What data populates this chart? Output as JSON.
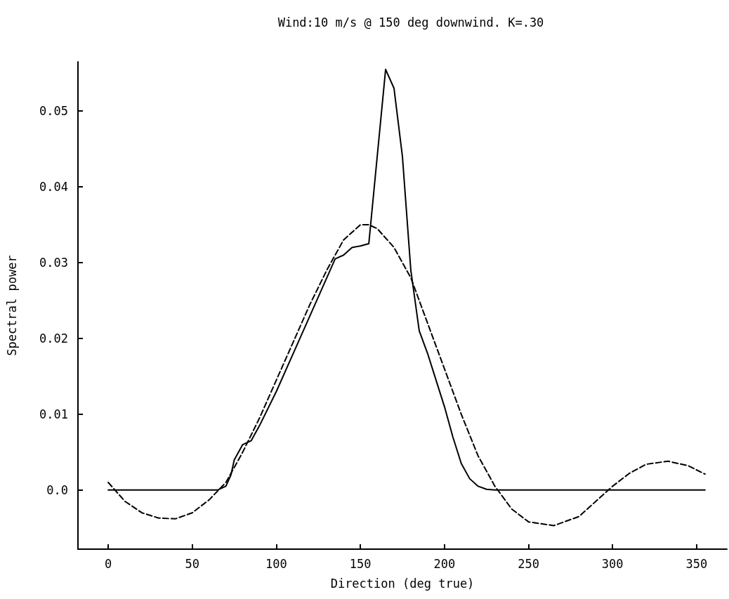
{
  "chart_data": {
    "type": "line",
    "title": "Wind:10 m/s @ 150 deg downwind. K=.30",
    "xlabel": "Direction (deg true)",
    "ylabel": "Spectral power",
    "xlim": [
      -18,
      368
    ],
    "xticks": [
      0,
      50,
      100,
      150,
      200,
      250,
      300,
      350
    ],
    "ylim": [
      -0.0078,
      0.0565
    ],
    "yticks": [
      {
        "value": 0,
        "label": "0.0"
      },
      0.01,
      0.02,
      0.03,
      0.04,
      0.05
    ],
    "grid": false,
    "marker": "none",
    "series": [
      {
        "color": "#000000",
        "line_style": "solid",
        "x": [
          0,
          65,
          70,
          73,
          75,
          80,
          85,
          90,
          100,
          110,
          120,
          130,
          135,
          140,
          145,
          150,
          155,
          160,
          165,
          170,
          175,
          180,
          185,
          190,
          200,
          205,
          210,
          215,
          220,
          225,
          230,
          355
        ],
        "values": [
          0,
          0,
          0.0005,
          0.002,
          0.004,
          0.006,
          0.0065,
          0.0085,
          0.013,
          0.018,
          0.023,
          0.028,
          0.0305,
          0.031,
          0.032,
          0.0322,
          0.0325,
          0.044,
          0.0555,
          0.053,
          0.044,
          0.029,
          0.021,
          0.018,
          0.011,
          0.007,
          0.0035,
          0.0015,
          0.0005,
          0.0001,
          0,
          0
        ]
      },
      {
        "color": "#000000",
        "line_style": "dashed",
        "x": [
          0,
          10,
          20,
          30,
          40,
          50,
          60,
          70,
          80,
          90,
          100,
          110,
          120,
          130,
          140,
          150,
          155,
          160,
          170,
          180,
          190,
          200,
          210,
          220,
          230,
          240,
          250,
          265,
          280,
          290,
          300,
          310,
          320,
          333,
          345,
          355
        ],
        "values": [
          0.001,
          -0.0015,
          -0.003,
          -0.0037,
          -0.0038,
          -0.003,
          -0.0013,
          0.001,
          0.005,
          0.0095,
          0.0145,
          0.0195,
          0.0245,
          0.029,
          0.033,
          0.035,
          0.035,
          0.0345,
          0.032,
          0.028,
          0.022,
          0.016,
          0.01,
          0.0045,
          0.0005,
          -0.0025,
          -0.0042,
          -0.0047,
          -0.0035,
          -0.0015,
          0.0005,
          0.0022,
          0.0034,
          0.0038,
          0.0032,
          0.0021
        ]
      }
    ]
  }
}
